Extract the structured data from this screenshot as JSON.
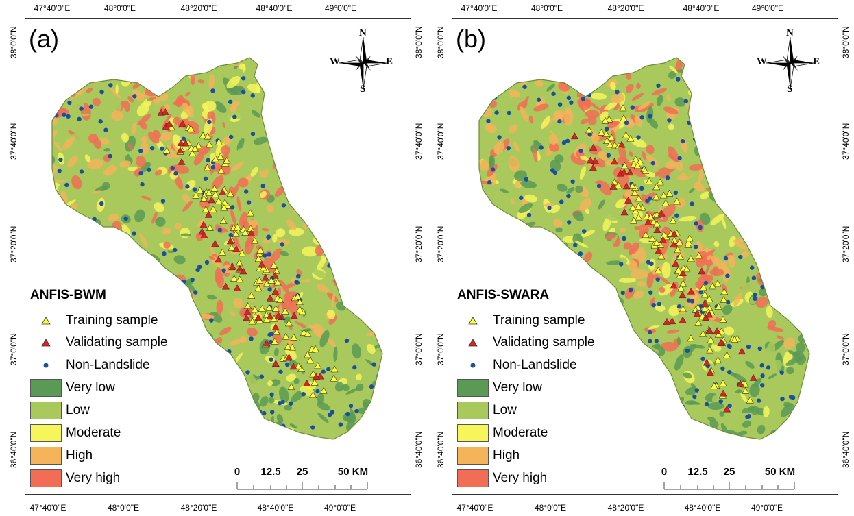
{
  "lon_ticks": [
    "47°40'0\"E",
    "48°0'0\"E",
    "48°20'0\"E",
    "48°40'0\"E",
    "49°0'0\"E"
  ],
  "lat_ticks": [
    "38°0'0\"N",
    "37°40'0\"N",
    "37°20'0\"N",
    "37°0'0\"N",
    "36°40'0\"N"
  ],
  "panels": [
    {
      "label": "(a)",
      "model": "ANFIS-BWM",
      "colors": {
        "very_low": "#5b9a55",
        "low": "#a9c95c",
        "moderate": "#f6f55a",
        "high": "#f5b45a",
        "very_high": "#f16d55"
      }
    },
    {
      "label": "(b)",
      "model": "ANFIS-SWARA",
      "colors": {
        "very_low": "#5b9a55",
        "low": "#a9c95c",
        "moderate": "#f6f55a",
        "high": "#f5b45a",
        "very_high": "#f16d55"
      }
    }
  ],
  "legend": {
    "training": "Training sample",
    "validating": "Validating sample",
    "nonlandslide": "Non-Landslide",
    "very_low": "Very low",
    "low": "Low",
    "moderate": "Moderate",
    "high": "High",
    "very_high": "Very high"
  },
  "scale": {
    "l0": "0",
    "l1": "12.5",
    "l2": "25",
    "l3": "50 KM"
  },
  "compass": {
    "n": "N",
    "s": "S",
    "e": "E",
    "w": "W"
  }
}
